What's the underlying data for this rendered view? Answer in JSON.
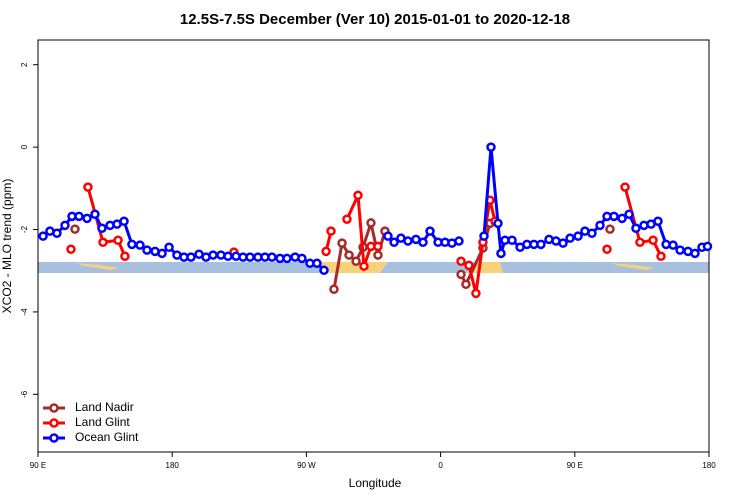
{
  "chart_data": {
    "type": "line",
    "title": "12.5S-7.5S December (Ver 10)   2015-01-01 to 2020-12-18",
    "x_label": "Longitude",
    "y_label": "XCO2 - MLO trend (ppm)",
    "xlim": [
      90,
      540
    ],
    "ylim": [
      -7.4,
      2.6
    ],
    "xticks": [
      {
        "value": 90,
        "label": "90 E"
      },
      180,
      {
        "value": 270,
        "label": "90 W"
      },
      {
        "value": 360,
        "label": "0"
      },
      {
        "value": 450,
        "label": "90 E"
      },
      {
        "value": 540,
        "label": "180"
      }
    ],
    "yticks": [
      2,
      0,
      -2,
      -4,
      -6
    ],
    "legend": "bottom-left",
    "series": [
      {
        "name": "Land Nadir",
        "color": "#a52a2a",
        "x": [
          114.8,
          null,
          288.5,
          293.9,
          298.6,
          303.3,
          308,
          313.3,
          318,
          322.7,
          null,
          373.7,
          377,
          388.4,
          393.1,
          null,
          473.6
        ],
        "values": [
          -1.99,
          null,
          -3.45,
          -2.33,
          -2.62,
          -2.77,
          -2.43,
          -1.84,
          -2.62,
          -2.04,
          null,
          -3.09,
          -3.33,
          -2.45,
          -1.85,
          null,
          -1.99
        ]
      },
      {
        "name": "Land Glint",
        "color": "#ff0000",
        "x": [
          112.1,
          null,
          123.5,
          133.6,
          143.7,
          148.3,
          null,
          221.4,
          null,
          283.2,
          286.5,
          null,
          297.2,
          304.6,
          308.6,
          313.3,
          318,
          null,
          373.7,
          379,
          383.7,
          388.4,
          393.1,
          396.5,
          null,
          471.6,
          null,
          483.7,
          493.7,
          502.5,
          507.8
        ],
        "values": [
          -2.48,
          null,
          -0.97,
          -2.31,
          -2.26,
          -2.65,
          null,
          -2.55,
          null,
          -2.53,
          -2.04,
          null,
          -1.75,
          -1.17,
          -2.89,
          -2.41,
          -2.41,
          null,
          -2.77,
          -2.87,
          -3.55,
          -2.31,
          -1.29,
          -1.8,
          null,
          -2.48,
          null,
          -0.97,
          -2.31,
          -2.26,
          -2.65
        ]
      },
      {
        "name": "Ocean Glint",
        "color": "#0000ff",
        "x": [
          93.4,
          98,
          102.7,
          108.1,
          112.8,
          117.5,
          122.9,
          128.2,
          132.9,
          138.3,
          143,
          147.7,
          153,
          158.4,
          163.1,
          168.5,
          173.2,
          177.9,
          183.2,
          187.9,
          192.6,
          198,
          202.7,
          207.4,
          212.7,
          217.4,
          222.8,
          227.5,
          232.2,
          237.5,
          242.2,
          246.9,
          252.3,
          257,
          262.4,
          267,
          272.4,
          277.1,
          281.8,
          null,
          324.7,
          328.8,
          333.4,
          338.1,
          343.5,
          348.2,
          352.9,
          358.3,
          363,
          367.6,
          372.3,
          null,
          389.1,
          393.8,
          398.5,
          400.5,
          403.2,
          407.9,
          413.3,
          417.9,
          422.6,
          427.3,
          432.7,
          437.4,
          442.1,
          446.8,
          452.2,
          456.8,
          461.5,
          466.9,
          471.6,
          476.3,
          481.7,
          486.4,
          491,
          496.4,
          501.1,
          505.8,
          511.2,
          515.9,
          520.6,
          525.9,
          530.6,
          535.3,
          539
        ],
        "values": [
          -2.16,
          -2.04,
          -2.09,
          -1.9,
          -1.68,
          -1.68,
          -1.73,
          -1.63,
          -1.97,
          -1.9,
          -1.87,
          -1.8,
          -2.36,
          -2.38,
          -2.5,
          -2.53,
          -2.58,
          -2.43,
          -2.62,
          -2.67,
          -2.67,
          -2.6,
          -2.67,
          -2.62,
          -2.62,
          -2.65,
          -2.65,
          -2.67,
          -2.67,
          -2.67,
          -2.67,
          -2.67,
          -2.7,
          -2.7,
          -2.67,
          -2.7,
          -2.82,
          -2.82,
          -2.99,
          null,
          -2.16,
          -2.31,
          -2.21,
          -2.28,
          -2.24,
          -2.31,
          -2.04,
          -2.31,
          -2.31,
          -2.33,
          -2.28,
          null,
          -2.16,
          0,
          -1.85,
          -2.58,
          -2.26,
          -2.26,
          -2.43,
          -2.36,
          -2.36,
          -2.36,
          -2.24,
          -2.28,
          -2.33,
          -2.21,
          -2.16,
          -2.04,
          -2.09,
          -1.9,
          -1.68,
          -1.68,
          -1.73,
          -1.63,
          -1.97,
          -1.9,
          -1.87,
          -1.8,
          -2.36,
          -2.38,
          -2.5,
          -2.53,
          -2.58,
          -2.43,
          -2.41
        ]
      }
    ]
  }
}
